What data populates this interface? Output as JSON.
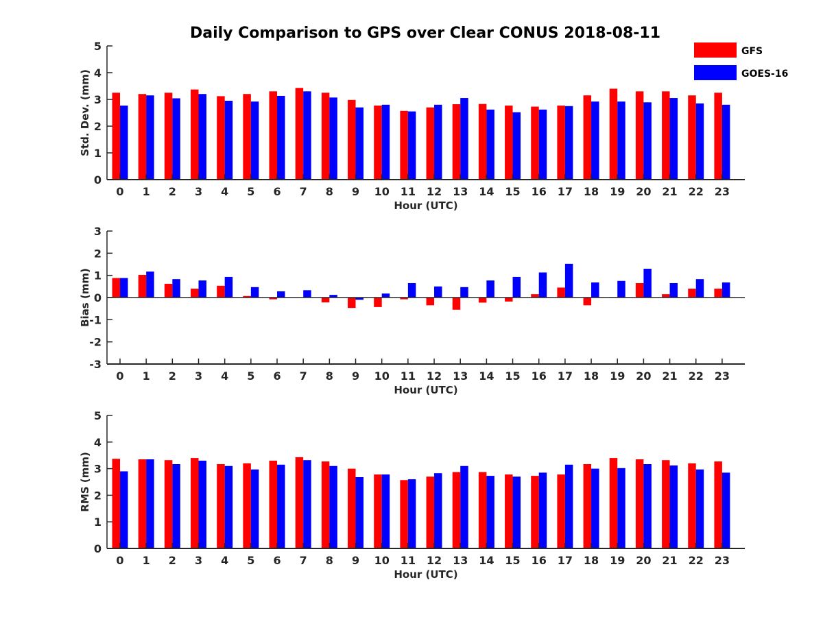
{
  "chart_data": {
    "title": "Daily Comparison to GPS over Clear CONUS 2018-08-11",
    "legend": {
      "placement": "top-right",
      "entries": [
        {
          "name": "GFS",
          "color": "#ff0000"
        },
        {
          "name": "GOES-16",
          "color": "#0000ff"
        }
      ]
    },
    "panels": [
      {
        "type": "bar",
        "xlabel": "Hour (UTC)",
        "ylabel": "Std. Dev. (mm)",
        "ylim": [
          0,
          5
        ],
        "yticks": [
          "0",
          "1",
          "2",
          "3",
          "4",
          "5"
        ],
        "categories": [
          "0",
          "1",
          "2",
          "3",
          "4",
          "5",
          "6",
          "7",
          "8",
          "9",
          "10",
          "11",
          "12",
          "13",
          "14",
          "15",
          "16",
          "17",
          "18",
          "19",
          "20",
          "21",
          "22",
          "23"
        ],
        "series": [
          {
            "name": "GFS",
            "color": "#ff0000",
            "values": [
              3.25,
              3.2,
              3.25,
              3.37,
              3.12,
              3.2,
              3.3,
              3.43,
              3.25,
              2.98,
              2.77,
              2.57,
              2.7,
              2.82,
              2.83,
              2.77,
              2.73,
              2.77,
              3.15,
              3.4,
              3.3,
              3.3,
              3.15,
              3.25
            ]
          },
          {
            "name": "GOES-16",
            "color": "#0000ff",
            "values": [
              2.77,
              3.15,
              3.04,
              3.2,
              2.95,
              2.92,
              3.13,
              3.3,
              3.07,
              2.7,
              2.8,
              2.55,
              2.8,
              3.05,
              2.62,
              2.52,
              2.62,
              2.75,
              2.92,
              2.92,
              2.89,
              3.05,
              2.85,
              2.8
            ]
          }
        ]
      },
      {
        "type": "bar",
        "xlabel": "Hour (UTC)",
        "ylabel": "Bias (mm)",
        "ylim": [
          -3,
          3
        ],
        "yticks": [
          "-3",
          "-2",
          "-1",
          "0",
          "1",
          "2",
          "3"
        ],
        "categories": [
          "0",
          "1",
          "2",
          "3",
          "4",
          "5",
          "6",
          "7",
          "8",
          "9",
          "10",
          "11",
          "12",
          "13",
          "14",
          "15",
          "16",
          "17",
          "18",
          "19",
          "20",
          "21",
          "22",
          "23"
        ],
        "series": [
          {
            "name": "GFS",
            "color": "#ff0000",
            "values": [
              0.88,
              1.02,
              0.62,
              0.4,
              0.53,
              0.07,
              -0.08,
              0.0,
              -0.22,
              -0.47,
              -0.43,
              -0.08,
              -0.35,
              -0.55,
              -0.23,
              -0.18,
              0.15,
              0.45,
              -0.35,
              0.02,
              0.65,
              0.15,
              0.4,
              0.4
            ]
          },
          {
            "name": "GOES-16",
            "color": "#0000ff",
            "values": [
              0.88,
              1.17,
              0.83,
              0.77,
              0.93,
              0.47,
              0.28,
              0.33,
              0.12,
              -0.1,
              0.18,
              0.65,
              0.5,
              0.47,
              0.77,
              0.93,
              1.13,
              1.52,
              0.68,
              0.75,
              1.3,
              0.65,
              0.83,
              0.68
            ]
          }
        ]
      },
      {
        "type": "bar",
        "xlabel": "Hour (UTC)",
        "ylabel": "RMS (mm)",
        "ylim": [
          0,
          5
        ],
        "yticks": [
          "0",
          "1",
          "2",
          "3",
          "4",
          "5"
        ],
        "categories": [
          "0",
          "1",
          "2",
          "3",
          "4",
          "5",
          "6",
          "7",
          "8",
          "9",
          "10",
          "11",
          "12",
          "13",
          "14",
          "15",
          "16",
          "17",
          "18",
          "19",
          "20",
          "21",
          "22",
          "23"
        ],
        "series": [
          {
            "name": "GFS",
            "color": "#ff0000",
            "values": [
              3.37,
              3.35,
              3.32,
              3.4,
              3.17,
              3.2,
              3.3,
              3.43,
              3.27,
              3.0,
              2.78,
              2.57,
              2.7,
              2.87,
              2.87,
              2.78,
              2.73,
              2.78,
              3.17,
              3.4,
              3.35,
              3.32,
              3.2,
              3.27
            ]
          },
          {
            "name": "GOES-16",
            "color": "#0000ff",
            "values": [
              2.9,
              3.35,
              3.17,
              3.3,
              3.1,
              2.97,
              3.15,
              3.32,
              3.1,
              2.68,
              2.78,
              2.6,
              2.83,
              3.1,
              2.73,
              2.7,
              2.85,
              3.15,
              3.0,
              3.02,
              3.17,
              3.12,
              2.97,
              2.85
            ]
          }
        ]
      }
    ]
  }
}
